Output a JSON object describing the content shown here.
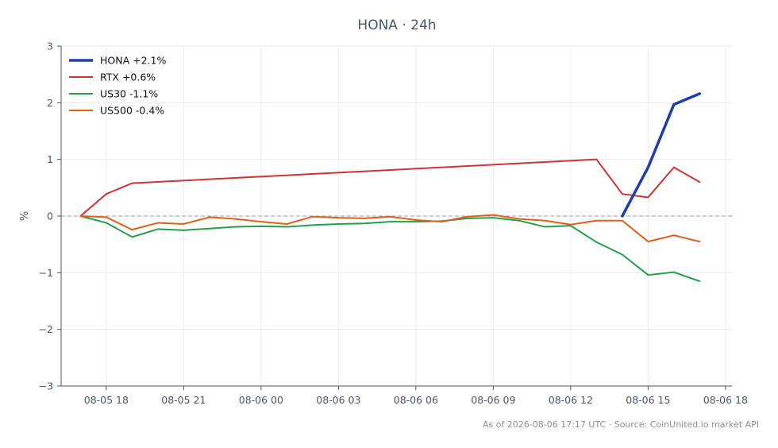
{
  "chart_data": {
    "type": "line",
    "title": "HONA · 24h",
    "xlabel": "",
    "ylabel": "%",
    "ylim": [
      -3,
      3
    ],
    "yticks": [
      3,
      2,
      1,
      0,
      -1,
      -2,
      -3
    ],
    "ytick_labels": [
      "3",
      "2",
      "1",
      "0",
      "−1",
      "−2",
      "−3"
    ],
    "x_range": [
      "2026-08-05T16:15",
      "2026-08-06T18:15"
    ],
    "xticks": [
      "2026-08-05T18:00",
      "2026-08-05T21:00",
      "2026-08-06T00:00",
      "2026-08-06T03:00",
      "2026-08-06T06:00",
      "2026-08-06T09:00",
      "2026-08-06T12:00",
      "2026-08-06T15:00",
      "2026-08-06T18:00"
    ],
    "xtick_labels": [
      "08-05 18",
      "08-05 21",
      "08-06 00",
      "08-06 03",
      "08-06 06",
      "08-06 09",
      "08-06 12",
      "08-06 15",
      "08-06 18"
    ],
    "grid": true,
    "zero_line": true,
    "legend": "top-left",
    "series": [
      {
        "name": "HONA +2.1%",
        "color": "#1f3fa8",
        "width": 3.5,
        "points": [
          [
            "2026-08-06T14:00",
            0.0
          ],
          [
            "2026-08-06T15:00",
            0.86
          ],
          [
            "2026-08-06T16:00",
            1.97
          ],
          [
            "2026-08-06T17:00",
            2.16
          ]
        ]
      },
      {
        "name": "RTX +0.6%",
        "color": "#d03232",
        "width": 2,
        "points": [
          [
            "2026-08-05T17:00",
            0.0
          ],
          [
            "2026-08-05T18:00",
            0.39
          ],
          [
            "2026-08-05T19:00",
            0.58
          ],
          [
            "2026-08-06T13:00",
            1.0
          ],
          [
            "2026-08-06T14:00",
            0.39
          ],
          [
            "2026-08-06T15:00",
            0.33
          ],
          [
            "2026-08-06T16:00",
            0.86
          ],
          [
            "2026-08-06T17:00",
            0.6
          ]
        ]
      },
      {
        "name": "US30 -1.1%",
        "color": "#22a04a",
        "width": 2,
        "points": [
          [
            "2026-08-05T17:00",
            0.0
          ],
          [
            "2026-08-05T18:00",
            -0.12
          ],
          [
            "2026-08-05T19:00",
            -0.37
          ],
          [
            "2026-08-05T20:00",
            -0.23
          ],
          [
            "2026-08-05T21:00",
            -0.25
          ],
          [
            "2026-08-05T22:00",
            -0.22
          ],
          [
            "2026-08-05T23:00",
            -0.19
          ],
          [
            "2026-08-06T00:00",
            -0.18
          ],
          [
            "2026-08-06T01:00",
            -0.19
          ],
          [
            "2026-08-06T02:00",
            -0.16
          ],
          [
            "2026-08-06T03:00",
            -0.14
          ],
          [
            "2026-08-06T04:00",
            -0.13
          ],
          [
            "2026-08-06T05:00",
            -0.1
          ],
          [
            "2026-08-06T06:00",
            -0.1
          ],
          [
            "2026-08-06T07:00",
            -0.09
          ],
          [
            "2026-08-06T08:00",
            -0.04
          ],
          [
            "2026-08-06T09:00",
            -0.03
          ],
          [
            "2026-08-06T10:00",
            -0.08
          ],
          [
            "2026-08-06T11:00",
            -0.19
          ],
          [
            "2026-08-06T12:00",
            -0.17
          ],
          [
            "2026-08-06T13:00",
            -0.46
          ],
          [
            "2026-08-06T14:00",
            -0.68
          ],
          [
            "2026-08-06T15:00",
            -1.04
          ],
          [
            "2026-08-06T16:00",
            -0.99
          ],
          [
            "2026-08-06T17:00",
            -1.15
          ]
        ]
      },
      {
        "name": "US500 -0.4%",
        "color": "#e0601a",
        "width": 2,
        "points": [
          [
            "2026-08-05T17:00",
            0.0
          ],
          [
            "2026-08-05T18:00",
            -0.02
          ],
          [
            "2026-08-05T19:00",
            -0.24
          ],
          [
            "2026-08-05T20:00",
            -0.12
          ],
          [
            "2026-08-05T21:00",
            -0.14
          ],
          [
            "2026-08-05T22:00",
            -0.02
          ],
          [
            "2026-08-05T23:00",
            -0.05
          ],
          [
            "2026-08-06T00:00",
            -0.1
          ],
          [
            "2026-08-06T01:00",
            -0.14
          ],
          [
            "2026-08-06T02:00",
            -0.01
          ],
          [
            "2026-08-06T03:00",
            -0.03
          ],
          [
            "2026-08-06T04:00",
            -0.04
          ],
          [
            "2026-08-06T05:00",
            -0.01
          ],
          [
            "2026-08-06T06:00",
            -0.07
          ],
          [
            "2026-08-06T07:00",
            -0.1
          ],
          [
            "2026-08-06T08:00",
            -0.01
          ],
          [
            "2026-08-06T09:00",
            0.02
          ],
          [
            "2026-08-06T10:00",
            -0.05
          ],
          [
            "2026-08-06T11:00",
            -0.08
          ],
          [
            "2026-08-06T12:00",
            -0.15
          ],
          [
            "2026-08-06T13:00",
            -0.08
          ],
          [
            "2026-08-06T14:00",
            -0.08
          ],
          [
            "2026-08-06T15:00",
            -0.45
          ],
          [
            "2026-08-06T16:00",
            -0.34
          ],
          [
            "2026-08-06T17:00",
            -0.45
          ]
        ]
      }
    ]
  },
  "footer": "As of 2026-08-06 17:17 UTC · Source: CoinUnited.io market API",
  "colors": {
    "axis": "#4a5568",
    "grid": "#ececec",
    "zero_line": "#9aa3b5"
  }
}
